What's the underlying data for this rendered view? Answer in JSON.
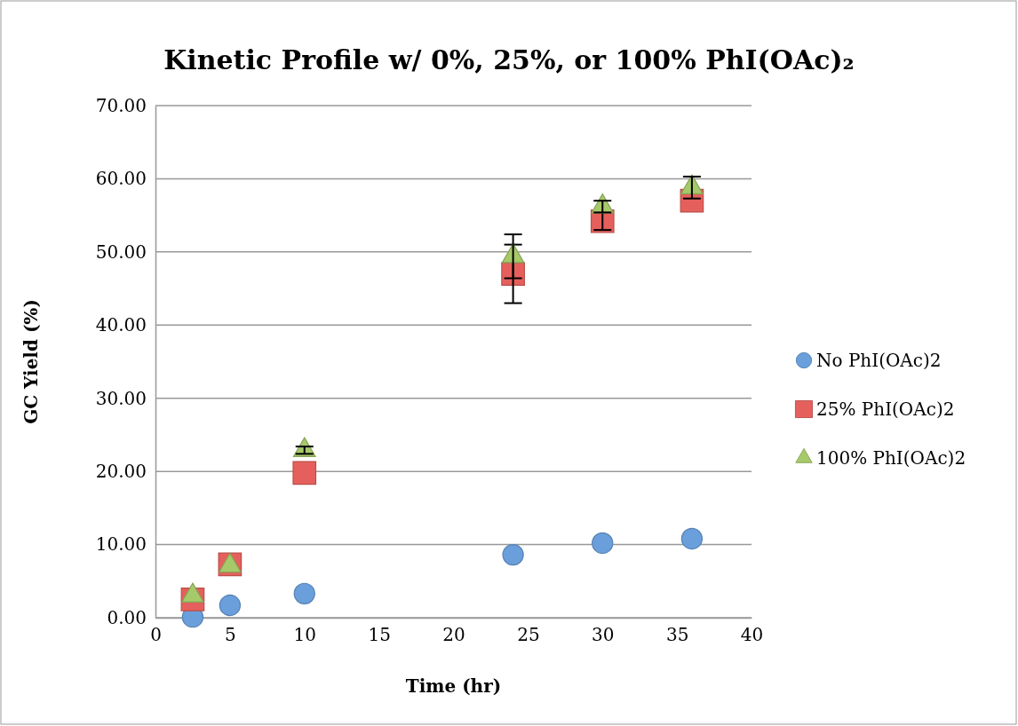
{
  "chart_data": {
    "type": "scatter",
    "title": "Kinetic Profile w/ 0%, 25%, or 100% PhI(OAc)₂",
    "xlabel": "Time (hr)",
    "ylabel": "GC Yield (%)",
    "x": [
      2.5,
      5,
      10,
      24,
      30,
      36
    ],
    "series": [
      {
        "name": "No PhI(OAc)2",
        "color": "#6a9fdc",
        "marker": "circle",
        "values": [
          0.1,
          1.7,
          3.3,
          8.6,
          10.2,
          10.8
        ]
      },
      {
        "name": "25% PhI(OAc)2",
        "color": "#e5605c",
        "marker": "square",
        "values": [
          2.5,
          7.3,
          19.8,
          47.0,
          54.2,
          57.0
        ],
        "errors": [
          null,
          null,
          null,
          4.0,
          1.2,
          null
        ]
      },
      {
        "name": "100% PhI(OAc)2",
        "color": "#a6c96a",
        "marker": "triangle",
        "values": [
          3.0,
          7.1,
          22.9,
          49.4,
          56.2,
          58.8
        ],
        "errors": [
          null,
          null,
          0.5,
          3.0,
          0.8,
          1.5
        ]
      }
    ],
    "xlim": [
      0,
      40
    ],
    "xticks": [
      0,
      5,
      10,
      15,
      20,
      25,
      30,
      35,
      40
    ],
    "ylim": [
      0,
      70
    ],
    "yticks": [
      {
        "value": 0,
        "label": "0.00"
      },
      {
        "value": 10,
        "label": "10.00"
      },
      {
        "value": 20,
        "label": "20.00"
      },
      {
        "value": 30,
        "label": "30.00"
      },
      {
        "value": 40,
        "label": "40.00"
      },
      {
        "value": 50,
        "label": "50.00"
      },
      {
        "value": 60,
        "label": "60.00"
      },
      {
        "value": 70,
        "label": "70.00"
      }
    ],
    "grid": "y",
    "legend": "right"
  }
}
